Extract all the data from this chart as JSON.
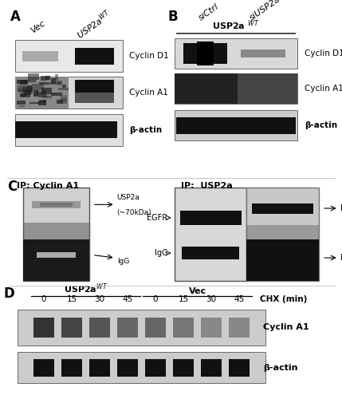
{
  "figure_bg": "#ffffff",
  "panel_A": {
    "label": "A",
    "col_labels": [
      "Vec",
      "USP2a$^{WT}$"
    ],
    "blot_labels": [
      "Cyclin D1",
      "Cyclin A1",
      "β-actin"
    ]
  },
  "panel_B": {
    "label": "B",
    "col_labels": [
      "siCtrl",
      "siUSP2a"
    ],
    "underline_label": "USP2a $^{WT}$",
    "blot_labels": [
      "Cyclin D1",
      "Cyclin A1",
      "β-actin"
    ]
  },
  "panel_C": {
    "label": "C",
    "ip_label_left": "IP: Cyclin A1",
    "ip_label_right": "IP:  USP2a"
  },
  "panel_D": {
    "label": "D",
    "group_labels": [
      "USP2a$^{WT}$",
      "Vec"
    ],
    "time_labels": [
      "0",
      "15",
      "30",
      "45",
      "0",
      "15",
      "30",
      "45"
    ],
    "time_header": "CHX (min)",
    "blot_labels": [
      "Cyclin A1",
      "β-actin"
    ]
  }
}
